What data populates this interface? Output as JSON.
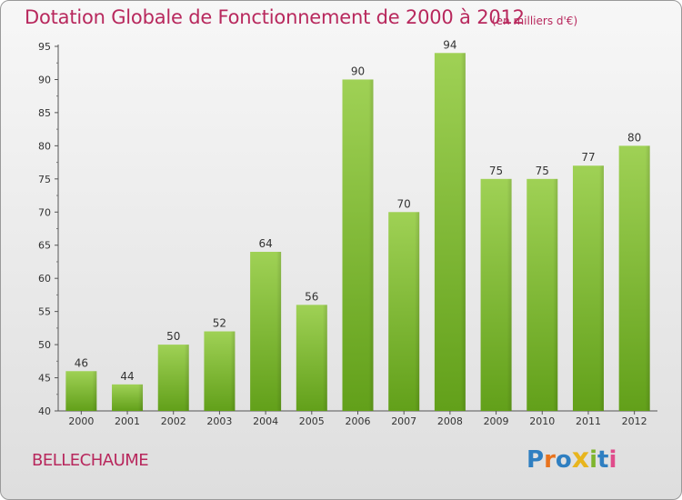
{
  "header": {
    "title": "Dotation Globale de Fonctionnement de 2000 à 2012",
    "subtitle": "(en milliers d'€)"
  },
  "footer": {
    "commune": "BELLECHAUME",
    "logo": "Proxiti"
  },
  "colors": {
    "title": "#b8285d",
    "bar_light": "#9fd155",
    "bar_dark": "#62a01a"
  },
  "chart_data": {
    "type": "bar",
    "title": "Dotation Globale de Fonctionnement de 2000 à 2012",
    "subtitle": "(en milliers d'€)",
    "categories": [
      "2000",
      "2001",
      "2002",
      "2003",
      "2004",
      "2005",
      "2006",
      "2007",
      "2008",
      "2009",
      "2010",
      "2011",
      "2012"
    ],
    "values": [
      46,
      44,
      50,
      52,
      64,
      56,
      90,
      70,
      94,
      75,
      75,
      77,
      80
    ],
    "ylim": [
      40,
      95
    ],
    "yticks": [
      40,
      45,
      50,
      55,
      60,
      65,
      70,
      75,
      80,
      85,
      90,
      95
    ],
    "grid": false,
    "data_labels": true
  }
}
